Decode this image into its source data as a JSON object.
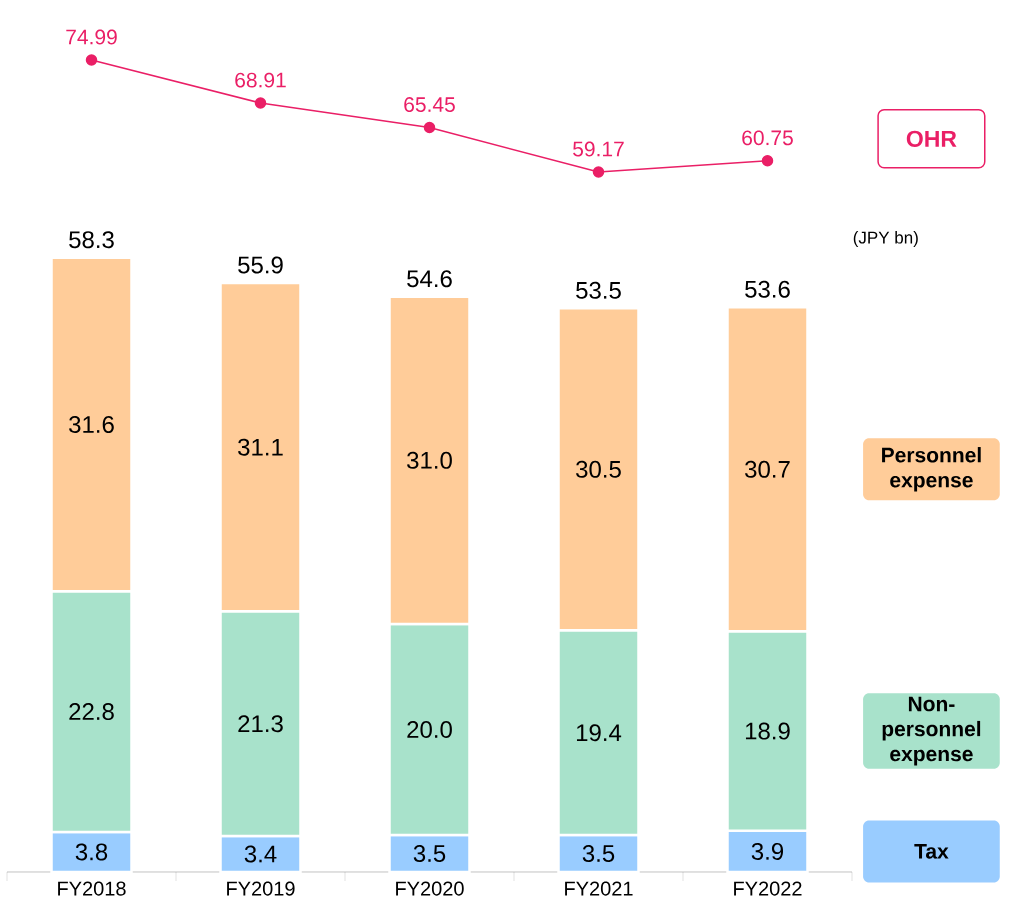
{
  "chart_data": [
    {
      "type": "line",
      "categories": [
        null,
        null,
        null,
        null,
        null
      ],
      "series": [
        {
          "name": "OHR",
          "color": "#ea1f66",
          "marker": "circle",
          "values": [
            74.99,
            68.91,
            65.45,
            59.17,
            60.75
          ],
          "value_labels": [
            "74.99",
            "68.91",
            "65.45",
            "59.17",
            "60.75"
          ]
        }
      ],
      "tick_labels": false,
      "legend": "right"
    },
    {
      "type": "bar",
      "stacked": true,
      "categories": [
        "FY2018",
        "FY2019",
        "FY2020",
        "FY2021",
        "FY2022"
      ],
      "series": [
        {
          "name": "Tax",
          "color": "#99ccff",
          "values": [
            3.8,
            3.4,
            3.5,
            3.5,
            3.9
          ],
          "value_labels": [
            "3.8",
            "3.4",
            "3.5",
            "3.5",
            "3.9"
          ]
        },
        {
          "name": "Non-personnel expense",
          "color": "#a8e2cb",
          "values": [
            22.8,
            21.3,
            20.0,
            19.4,
            18.9
          ],
          "value_labels": [
            "22.8",
            "21.3",
            "20.0",
            "19.4",
            "18.9"
          ]
        },
        {
          "name": "Personnel expense",
          "color": "#ffcc99",
          "values": [
            31.6,
            31.1,
            31.0,
            30.5,
            30.7
          ],
          "value_labels": [
            "31.6",
            "31.1",
            "31.0",
            "30.5",
            "30.7"
          ]
        }
      ],
      "totals": [
        "58.3",
        "55.9",
        "54.6",
        "53.5",
        "53.6"
      ],
      "tick_labels": "x",
      "legend": "right",
      "annotations": [
        "(JPY bn)"
      ]
    }
  ]
}
